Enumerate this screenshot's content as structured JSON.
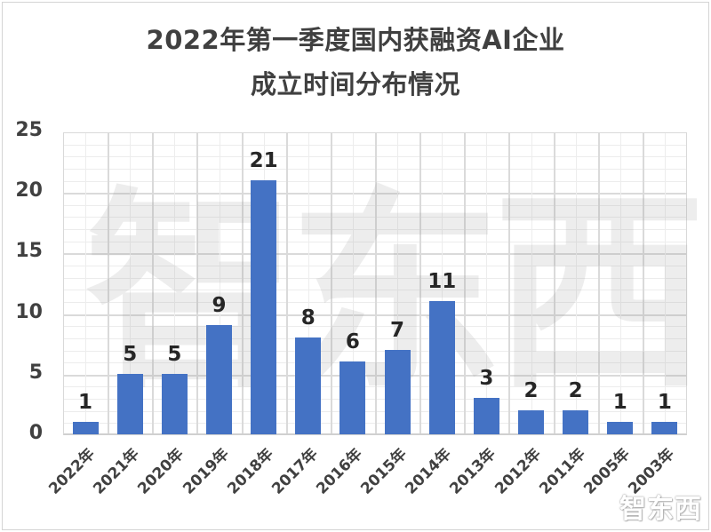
{
  "chart_data": {
    "type": "bar",
    "title": "2022年第一季度国内获融资AI企业成立时间分布情况",
    "title_lines": [
      "2022年第一季度国内获融资AI企业",
      "成立时间分布情况"
    ],
    "categories": [
      "2022年",
      "2021年",
      "2020年",
      "2019年",
      "2018年",
      "2017年",
      "2016年",
      "2015年",
      "2014年",
      "2013年",
      "2012年",
      "2011年",
      "2005年",
      "2003年"
    ],
    "values": [
      1,
      5,
      5,
      9,
      21,
      8,
      6,
      7,
      11,
      3,
      2,
      2,
      1,
      1
    ],
    "data_labels": [
      "1",
      "5",
      "5",
      "9",
      "21",
      "8",
      "6",
      "7",
      "11",
      "3",
      "2",
      "2",
      "1",
      "1"
    ],
    "xlabel": "",
    "ylabel": "",
    "ylim": [
      0,
      25
    ],
    "yticks": [
      "0",
      "5",
      "10",
      "15",
      "20",
      "25"
    ],
    "grid": true,
    "legend": null,
    "bar_color": "#4472c4"
  },
  "watermark": {
    "background_text": "智东西",
    "corner_logo": "智东西"
  }
}
